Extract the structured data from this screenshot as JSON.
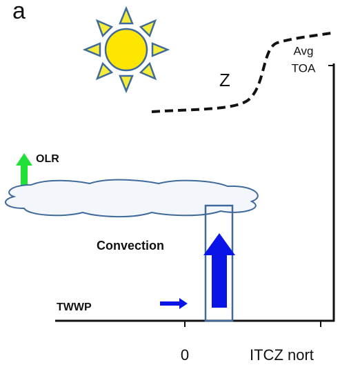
{
  "panel_label": "a",
  "z_label": "Z",
  "toa_label": [
    "Avg",
    "TOA"
  ],
  "olr_label": "OLR",
  "convection_label": "Convection",
  "twwp_label": "TWWP",
  "x_labels": [
    "0",
    "ITCZ nort"
  ]
}
